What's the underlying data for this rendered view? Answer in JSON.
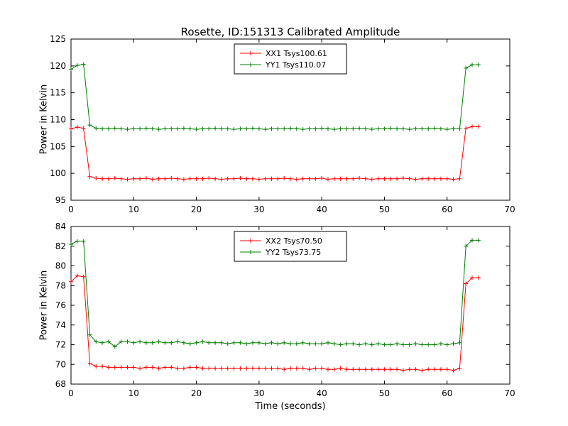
{
  "figure": {
    "title": "Rosette, ID:151313 Calibrated Amplitude",
    "background": "#ffffff",
    "axis_color": "#000000"
  },
  "chart_data": [
    {
      "type": "line",
      "title": "Rosette, ID:151313 Calibrated Amplitude",
      "xlabel": "",
      "ylabel": "Power in Kelvin",
      "xlim": [
        0,
        70
      ],
      "ylim": [
        95,
        125
      ],
      "xticks": [
        0,
        10,
        20,
        30,
        40,
        50,
        60,
        70
      ],
      "yticks": [
        95,
        100,
        105,
        110,
        115,
        120,
        125
      ],
      "grid": false,
      "legend_position": "upper center",
      "x": [
        0,
        1,
        2,
        3,
        4,
        5,
        6,
        7,
        8,
        9,
        10,
        11,
        12,
        13,
        14,
        15,
        16,
        17,
        18,
        19,
        20,
        21,
        22,
        23,
        24,
        25,
        26,
        27,
        28,
        29,
        30,
        31,
        32,
        33,
        34,
        35,
        36,
        37,
        38,
        39,
        40,
        41,
        42,
        43,
        44,
        45,
        46,
        47,
        48,
        49,
        50,
        51,
        52,
        53,
        54,
        55,
        56,
        57,
        58,
        59,
        60,
        61,
        62,
        63,
        64,
        65
      ],
      "series": [
        {
          "name": "XX1 Tsys100.61",
          "color": "#ff0000",
          "marker": "+",
          "values": [
            108.3,
            108.6,
            108.4,
            99.4,
            99.1,
            99.0,
            99.0,
            99.1,
            99.0,
            98.9,
            99.0,
            99.0,
            99.1,
            98.9,
            99.0,
            99.0,
            99.1,
            99.0,
            98.9,
            99.0,
            99.0,
            99.0,
            99.1,
            99.0,
            98.9,
            99.0,
            99.0,
            99.1,
            99.0,
            99.0,
            98.9,
            99.0,
            99.0,
            99.0,
            99.1,
            99.0,
            98.9,
            99.0,
            99.0,
            99.0,
            99.1,
            98.9,
            99.0,
            99.0,
            99.0,
            99.0,
            99.1,
            99.0,
            98.9,
            99.0,
            99.0,
            99.0,
            99.0,
            99.1,
            99.0,
            98.9,
            99.0,
            99.0,
            99.0,
            99.0,
            99.0,
            98.9,
            99.0,
            108.4,
            108.7,
            108.7
          ]
        },
        {
          "name": "YY1 Tsys110.07",
          "color": "#008000",
          "marker": "+",
          "values": [
            119.4,
            120.1,
            120.3,
            109.0,
            108.4,
            108.3,
            108.3,
            108.4,
            108.3,
            108.2,
            108.3,
            108.3,
            108.4,
            108.3,
            108.2,
            108.3,
            108.3,
            108.3,
            108.4,
            108.3,
            108.2,
            108.3,
            108.3,
            108.4,
            108.3,
            108.3,
            108.2,
            108.3,
            108.3,
            108.4,
            108.3,
            108.2,
            108.3,
            108.3,
            108.3,
            108.4,
            108.3,
            108.2,
            108.3,
            108.3,
            108.4,
            108.3,
            108.2,
            108.3,
            108.3,
            108.3,
            108.4,
            108.3,
            108.2,
            108.3,
            108.3,
            108.4,
            108.3,
            108.3,
            108.2,
            108.3,
            108.3,
            108.3,
            108.4,
            108.3,
            108.2,
            108.3,
            108.3,
            119.6,
            120.2,
            120.2
          ]
        }
      ]
    },
    {
      "type": "line",
      "title": "",
      "xlabel": "Time (seconds)",
      "ylabel": "Power in Kelvin",
      "xlim": [
        0,
        70
      ],
      "ylim": [
        68,
        84
      ],
      "xticks": [
        0,
        10,
        20,
        30,
        40,
        50,
        60,
        70
      ],
      "yticks": [
        68,
        70,
        72,
        74,
        76,
        78,
        80,
        82,
        84
      ],
      "grid": false,
      "legend_position": "upper center",
      "x": [
        0,
        1,
        2,
        3,
        4,
        5,
        6,
        7,
        8,
        9,
        10,
        11,
        12,
        13,
        14,
        15,
        16,
        17,
        18,
        19,
        20,
        21,
        22,
        23,
        24,
        25,
        26,
        27,
        28,
        29,
        30,
        31,
        32,
        33,
        34,
        35,
        36,
        37,
        38,
        39,
        40,
        41,
        42,
        43,
        44,
        45,
        46,
        47,
        48,
        49,
        50,
        51,
        52,
        53,
        54,
        55,
        56,
        57,
        58,
        59,
        60,
        61,
        62,
        63,
        64,
        65
      ],
      "series": [
        {
          "name": "XX2 Tsys70.50",
          "color": "#ff0000",
          "marker": "+",
          "values": [
            78.4,
            79.0,
            78.9,
            70.1,
            69.8,
            69.8,
            69.7,
            69.7,
            69.7,
            69.7,
            69.7,
            69.6,
            69.7,
            69.7,
            69.6,
            69.7,
            69.7,
            69.6,
            69.6,
            69.7,
            69.7,
            69.6,
            69.6,
            69.6,
            69.6,
            69.6,
            69.6,
            69.6,
            69.6,
            69.6,
            69.6,
            69.6,
            69.6,
            69.6,
            69.5,
            69.6,
            69.6,
            69.6,
            69.5,
            69.6,
            69.6,
            69.5,
            69.5,
            69.6,
            69.5,
            69.5,
            69.5,
            69.5,
            69.5,
            69.5,
            69.5,
            69.5,
            69.5,
            69.4,
            69.5,
            69.5,
            69.4,
            69.5,
            69.5,
            69.5,
            69.5,
            69.4,
            69.6,
            78.2,
            78.8,
            78.8
          ]
        },
        {
          "name": "YY2 Tsys73.75",
          "color": "#008000",
          "marker": "+",
          "values": [
            82.2,
            82.5,
            82.5,
            73.0,
            72.3,
            72.2,
            72.3,
            71.8,
            72.3,
            72.3,
            72.2,
            72.3,
            72.2,
            72.2,
            72.3,
            72.2,
            72.2,
            72.3,
            72.2,
            72.1,
            72.2,
            72.3,
            72.2,
            72.2,
            72.2,
            72.1,
            72.2,
            72.2,
            72.1,
            72.2,
            72.2,
            72.1,
            72.2,
            72.1,
            72.2,
            72.1,
            72.1,
            72.2,
            72.1,
            72.1,
            72.1,
            72.2,
            72.1,
            72.0,
            72.1,
            72.1,
            72.0,
            72.1,
            72.0,
            72.1,
            72.0,
            72.0,
            72.1,
            72.0,
            72.0,
            72.1,
            72.0,
            72.0,
            72.0,
            72.1,
            72.0,
            72.1,
            72.2,
            82.0,
            82.6,
            82.6
          ]
        }
      ]
    }
  ]
}
